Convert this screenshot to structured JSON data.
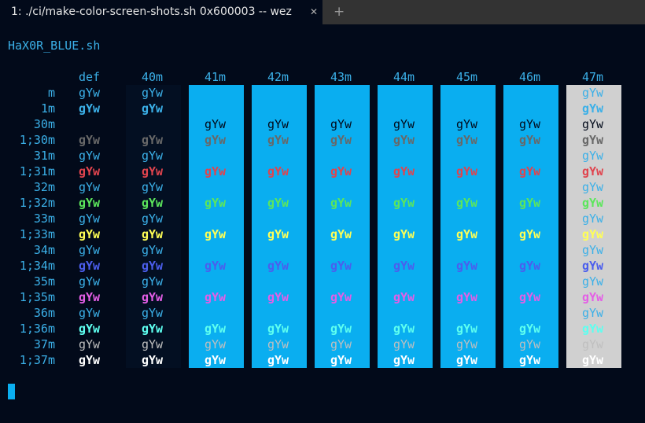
{
  "tab": {
    "title": "1: ./ci/make-color-screen-shots.sh 0x600003 -- wez",
    "close_glyph": "✕",
    "new_tab_glyph": "+"
  },
  "terminal": {
    "script_name": "HaX0R_BLUE.sh",
    "column_headers": [
      "def",
      "40m",
      "41m",
      "42m",
      "43m",
      "44m",
      "45m",
      "46m",
      "47m"
    ],
    "row_labels": [
      "m",
      "1m",
      "30m",
      "1;30m",
      "31m",
      "1;31m",
      "32m",
      "1;32m",
      "33m",
      "1;33m",
      "34m",
      "1;34m",
      "35m",
      "1;35m",
      "36m",
      "1;36m",
      "37m",
      "1;37m"
    ],
    "sample_text": "gYw",
    "colors": {
      "background": "#020a1a",
      "default_fg": "#3bb0e8",
      "bg_40": "#030f22",
      "bg_41_46": "#0aaef0",
      "bg_47": "#d0d0d0",
      "fg_30_def": "#020a1a",
      "fg_30_on_blue": "#020a1a",
      "fg_30_on_white": "#020a1a",
      "fg_1_30": "#686868",
      "fg_31": "#e0444e",
      "fg_32": "#5ce65c",
      "fg_33": "#ffff55",
      "fg_34": "#4b5eed",
      "fg_35": "#e45ee6",
      "fg_36": "#5efff0",
      "fg_37": "#bfbfbf",
      "fg_1_37": "#ffffff"
    }
  }
}
